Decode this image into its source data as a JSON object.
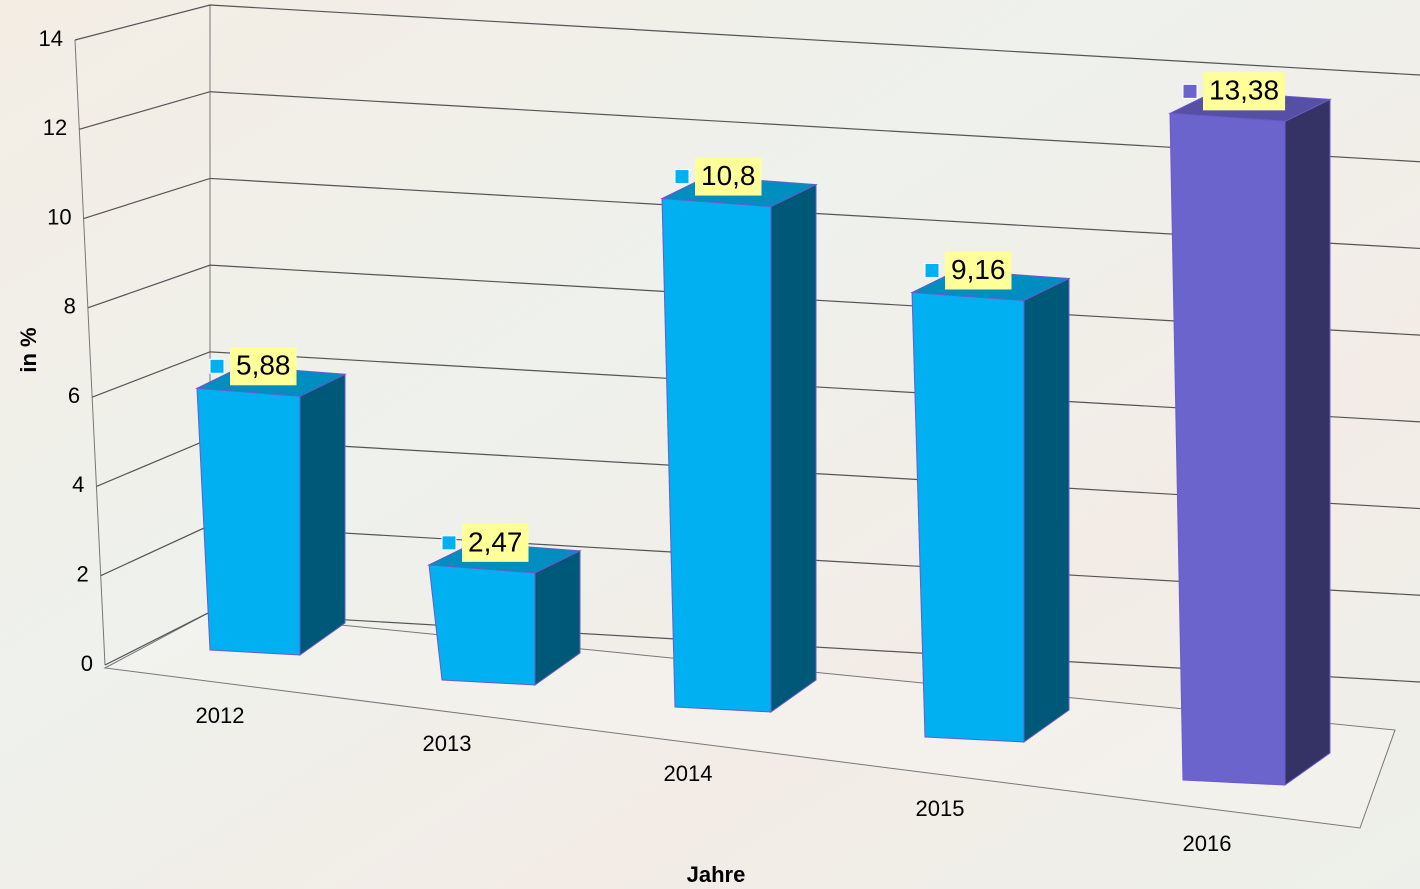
{
  "chart_data": {
    "type": "bar3d",
    "categories": [
      "2012",
      "2013",
      "2014",
      "2015",
      "2016"
    ],
    "values": [
      5.88,
      2.47,
      10.8,
      9.16,
      13.38
    ],
    "value_labels": [
      "5,88",
      "2,47",
      "10,8",
      "9,16",
      "13,38"
    ],
    "colors": [
      "#00b0f0",
      "#00b0f0",
      "#00b0f0",
      "#00b0f0",
      "#6a64cc"
    ],
    "ylim": [
      0,
      14
    ],
    "yticks": [
      0,
      2,
      4,
      6,
      8,
      10,
      12,
      14
    ],
    "ylabel": "in %",
    "xlabel": "Jahre",
    "grid": true
  }
}
